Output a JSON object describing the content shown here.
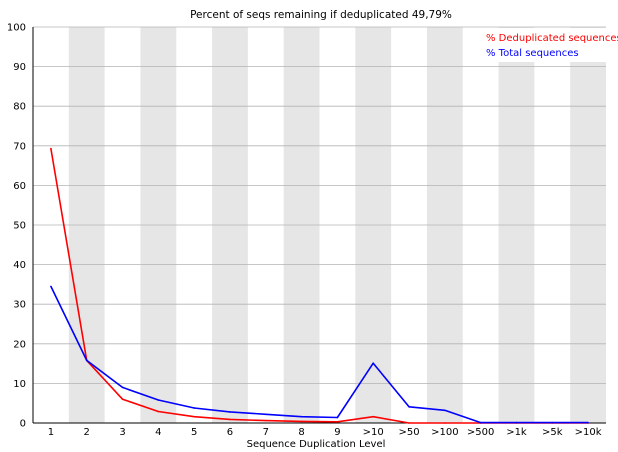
{
  "chart_data": {
    "type": "line",
    "title": "Percent of seqs remaining if deduplicated 49,79%",
    "xlabel": "Sequence Duplication Level",
    "ylabel": "",
    "categories": [
      "1",
      "2",
      "3",
      "4",
      "5",
      "6",
      "7",
      "8",
      "9",
      ">10",
      ">50",
      ">100",
      ">500",
      ">1k",
      ">5k",
      ">10k"
    ],
    "ylim": [
      0,
      100
    ],
    "yticks": [
      0,
      10,
      20,
      30,
      40,
      50,
      60,
      70,
      80,
      90,
      100
    ],
    "grid": true,
    "legend_position": "top-right",
    "series": [
      {
        "name": "% Deduplicated sequences",
        "color": "#ff0000",
        "values": [
          69.3,
          15.8,
          6.0,
          2.9,
          1.6,
          0.9,
          0.6,
          0.4,
          0.3,
          1.6,
          0.0,
          0.0,
          0.0,
          0.0,
          0.0,
          0.0
        ]
      },
      {
        "name": "% Total sequences",
        "color": "#0000ff",
        "values": [
          34.5,
          15.8,
          9.0,
          5.8,
          3.8,
          2.8,
          2.2,
          1.6,
          1.4,
          15.1,
          4.1,
          3.2,
          0.1,
          0.1,
          0.1,
          0.1
        ]
      }
    ]
  }
}
